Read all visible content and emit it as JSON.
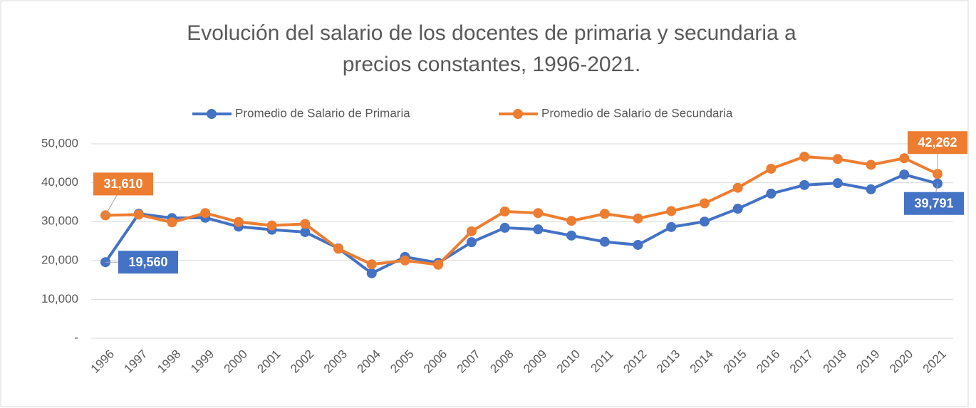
{
  "chart_data": {
    "type": "line",
    "title": "Evolución del salario de los docentes de primaria y secundaria a precios constantes, 1996-2021.",
    "categories": [
      "1996",
      "1997",
      "1998",
      "1999",
      "2000",
      "2001",
      "2002",
      "2003",
      "2004",
      "2005",
      "2006",
      "2007",
      "2008",
      "2009",
      "2010",
      "2011",
      "2012",
      "2013",
      "2014",
      "2015",
      "2016",
      "2017",
      "2018",
      "2019",
      "2020",
      "2021"
    ],
    "series": [
      {
        "name": "Promedio de Salario de Primaria",
        "color": "#4472c4",
        "values": [
          19560,
          32000,
          30900,
          31000,
          28700,
          27900,
          27300,
          23100,
          16700,
          20900,
          19400,
          24700,
          28400,
          28000,
          26400,
          24800,
          24000,
          28600,
          30000,
          33300,
          37200,
          39400,
          39900,
          38300,
          42100,
          39791
        ],
        "value_labels": [
          "19,560",
          null,
          null,
          null,
          null,
          null,
          null,
          null,
          null,
          null,
          null,
          null,
          null,
          null,
          null,
          null,
          null,
          null,
          null,
          null,
          null,
          null,
          null,
          null,
          null,
          "39,791"
        ]
      },
      {
        "name": "Promedio de Salario de Secundaria",
        "color": "#ed7d31",
        "values": [
          31610,
          31800,
          29800,
          32200,
          29900,
          29000,
          29400,
          23000,
          19000,
          20000,
          18900,
          27500,
          32600,
          32200,
          30200,
          32000,
          30800,
          32700,
          34700,
          38700,
          43600,
          46700,
          46100,
          44600,
          46300,
          42262
        ],
        "value_labels": [
          "31,610",
          null,
          null,
          null,
          null,
          null,
          null,
          null,
          null,
          null,
          null,
          null,
          null,
          null,
          null,
          null,
          null,
          null,
          null,
          null,
          null,
          null,
          null,
          null,
          null,
          "42,262"
        ]
      }
    ],
    "ylim": [
      0,
      50000
    ],
    "yticks": [
      {
        "value": 0,
        "label": "-"
      },
      {
        "value": 10000,
        "label": "10,000"
      },
      {
        "value": 20000,
        "label": "20,000"
      },
      {
        "value": 30000,
        "label": "30,000"
      },
      {
        "value": 40000,
        "label": "40,000"
      },
      {
        "value": 50000,
        "label": "50,000"
      }
    ],
    "grid": true,
    "legend": "top"
  }
}
